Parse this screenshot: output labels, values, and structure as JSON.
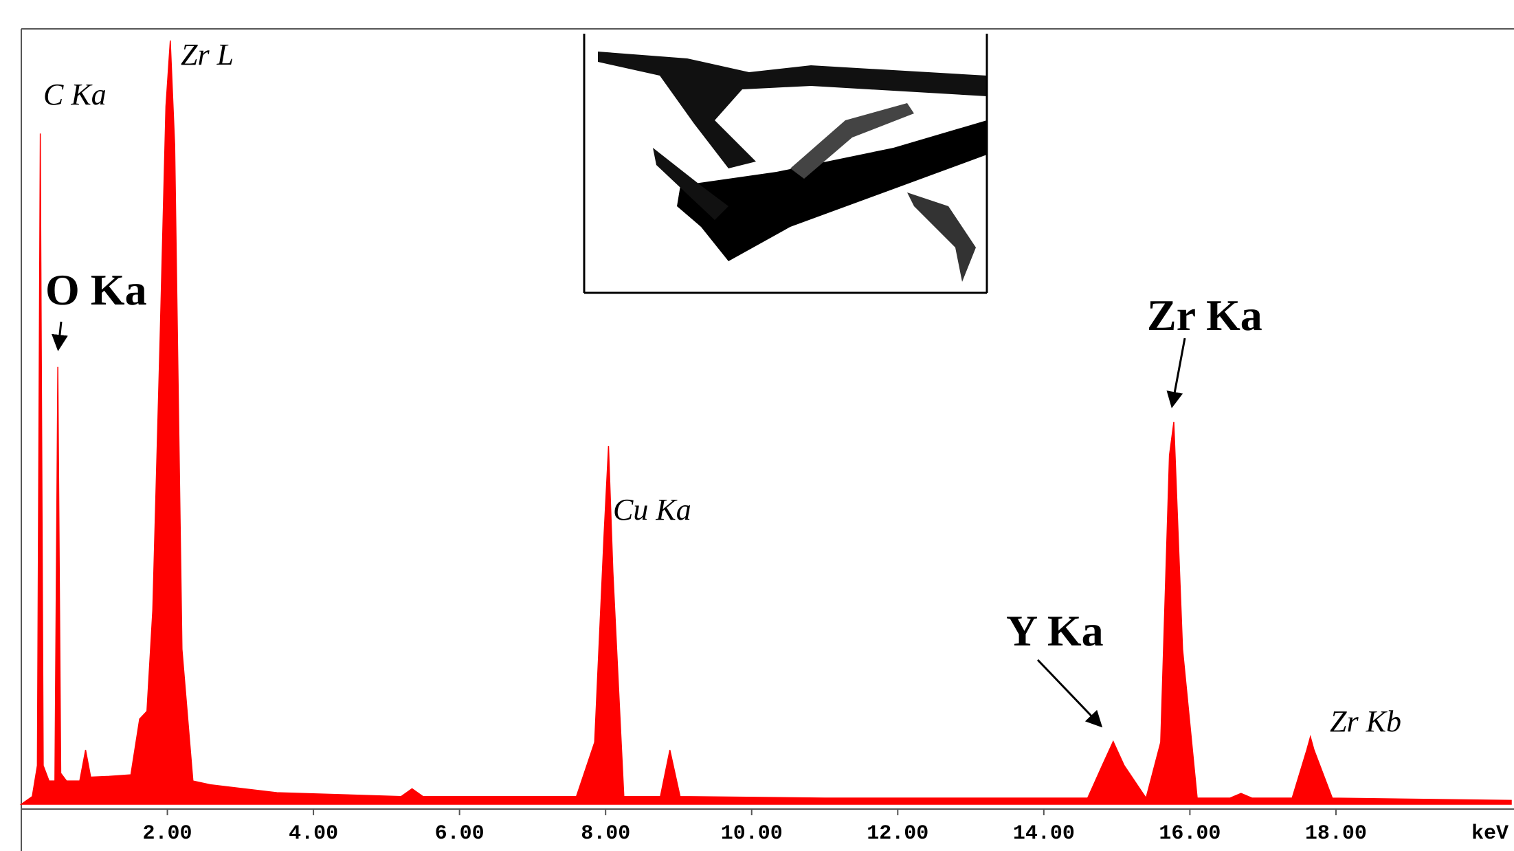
{
  "chart_data": {
    "type": "area",
    "x": [
      0,
      0.15,
      0.22,
      0.26,
      0.3,
      0.38,
      0.46,
      0.5,
      0.54,
      0.62,
      0.8,
      0.88,
      0.95,
      1.2,
      1.5,
      1.62,
      1.72,
      1.8,
      1.9,
      1.98,
      2.04,
      2.1,
      2.2,
      2.35,
      2.6,
      3.5,
      5.2,
      5.35,
      5.5,
      7.6,
      7.85,
      7.98,
      8.04,
      8.1,
      8.25,
      8.75,
      8.88,
      9.02,
      11.0,
      14.6,
      14.8,
      14.95,
      15.1,
      15.4,
      15.6,
      15.72,
      15.78,
      15.9,
      16.1,
      16.55,
      16.7,
      16.85,
      17.4,
      17.6,
      17.65,
      17.7,
      17.95,
      20.4
    ],
    "series": [
      {
        "color": "#ff0000",
        "values": [
          0,
          1,
          5,
          86.5,
          5,
          3,
          3,
          56.4,
          4,
          3,
          3,
          7,
          3.5,
          3.6,
          3.8,
          11,
          12,
          25,
          60,
          90,
          98.5,
          85,
          20,
          3,
          2.5,
          1.5,
          1,
          2,
          1,
          1,
          8,
          35,
          46.2,
          30,
          1,
          1,
          7,
          1,
          0.8,
          0.8,
          5,
          8.1,
          5,
          0.8,
          8,
          45,
          49.3,
          20,
          0.8,
          0.8,
          1.4,
          0.8,
          0.8,
          7,
          8.7,
          7,
          0.8,
          0.5
        ]
      }
    ],
    "xlim": [
      0,
      20.4
    ],
    "ylim": [
      0,
      100
    ],
    "xticks": [
      {
        "value": 2,
        "label": "2.00"
      },
      {
        "value": 4,
        "label": "4.00"
      },
      {
        "value": 6,
        "label": "6.00"
      },
      {
        "value": 8,
        "label": "8.00"
      },
      {
        "value": 10,
        "label": "10.00"
      },
      {
        "value": 12,
        "label": "12.00"
      },
      {
        "value": 14,
        "label": "14.00"
      },
      {
        "value": 16,
        "label": "16.00"
      },
      {
        "value": 18,
        "label": "18.00"
      }
    ],
    "x_label": "keV",
    "annotations": [
      "C Ka",
      "Zr L",
      "O Ka",
      "Cu Ka",
      "Y Ka",
      "Zr Ka",
      "Zr Kb"
    ]
  }
}
